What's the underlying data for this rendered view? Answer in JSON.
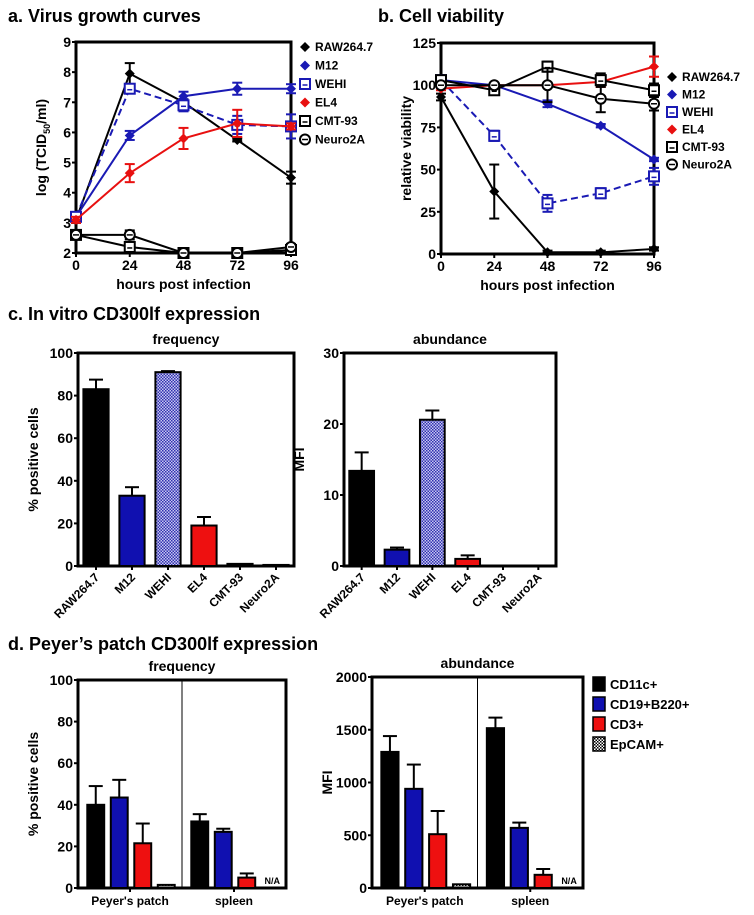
{
  "sections": {
    "c": "c. In vitro CD300lf expression",
    "d": "d. Peyer’s patch CD300lf expression"
  },
  "chart_data": [
    {
      "type": "line",
      "title": "a. Virus growth curves",
      "xlabel": "hours post infection",
      "ylabel": {
        "pre": "log (TCID",
        "sub": "50",
        "post": "/ml)"
      },
      "x": [
        0,
        24,
        48,
        72,
        96
      ],
      "xticks": [
        0,
        24,
        48,
        72,
        96
      ],
      "yticks": [
        2,
        3,
        4,
        5,
        6,
        7,
        8,
        9
      ],
      "xlim": [
        0,
        96
      ],
      "ylim": [
        2,
        9
      ],
      "legend": "right",
      "series": [
        {
          "name": "RAW264.7",
          "color": "#000000",
          "marker": "diamond",
          "dashed": false,
          "values": [
            3.1,
            7.95,
            7.0,
            5.75,
            4.5
          ],
          "err": [
            0.1,
            0.35,
            0.1,
            0.05,
            0.2
          ]
        },
        {
          "name": "M12",
          "color": "#1a1ab4",
          "marker": "diamond",
          "dashed": false,
          "values": [
            3.2,
            5.9,
            7.2,
            7.45,
            7.45
          ],
          "err": [
            0.1,
            0.15,
            0.15,
            0.2,
            0.15
          ]
        },
        {
          "name": "WEHI",
          "color": "#1a1ab4",
          "marker": "open-square",
          "dashed": true,
          "values": [
            3.2,
            7.45,
            6.9,
            6.25,
            6.2
          ],
          "err": [
            0.1,
            0.1,
            0.2,
            0.3,
            0.4
          ]
        },
        {
          "name": "EL4",
          "color": "#e81010",
          "marker": "diamond",
          "dashed": false,
          "values": [
            3.1,
            4.65,
            5.8,
            6.3,
            6.2
          ],
          "err": [
            0.1,
            0.3,
            0.35,
            0.45,
            0.1
          ]
        },
        {
          "name": "CMT-93",
          "color": "#000000",
          "marker": "open-square",
          "dashed": false,
          "values": [
            2.6,
            2.2,
            2.0,
            2.0,
            2.1
          ],
          "err": [
            0.1,
            0.1,
            0,
            0,
            0.15
          ]
        },
        {
          "name": "Neuro2A",
          "color": "#000000",
          "marker": "open-circle",
          "dashed": false,
          "values": [
            2.6,
            2.6,
            2.0,
            2.0,
            2.2
          ],
          "err": [
            0.1,
            0.15,
            0,
            0,
            0.1
          ]
        }
      ]
    },
    {
      "type": "line",
      "title": "b. Cell viability",
      "xlabel": "hours post infection",
      "ylabel": {
        "pre": "relative viability",
        "sub": "",
        "post": ""
      },
      "x": [
        0,
        24,
        48,
        72,
        96
      ],
      "xticks": [
        0,
        24,
        48,
        72,
        96
      ],
      "yticks": [
        0,
        25,
        50,
        75,
        100,
        125
      ],
      "xlim": [
        0,
        96
      ],
      "ylim": [
        0,
        125
      ],
      "legend": "right",
      "series": [
        {
          "name": "RAW264.7",
          "color": "#000000",
          "marker": "diamond",
          "dashed": false,
          "values": [
            93,
            37,
            1,
            1,
            3
          ],
          "err": [
            2,
            16,
            1,
            1,
            1
          ]
        },
        {
          "name": "M12",
          "color": "#1a1ab4",
          "marker": "diamond",
          "dashed": false,
          "values": [
            103,
            100,
            89,
            76,
            56
          ],
          "err": [
            2,
            1,
            2,
            1,
            1
          ]
        },
        {
          "name": "WEHI",
          "color": "#1a1ab4",
          "marker": "open-square",
          "dashed": true,
          "values": [
            103,
            70,
            30,
            36,
            46
          ],
          "err": [
            2,
            3,
            5,
            3,
            5
          ]
        },
        {
          "name": "EL4",
          "color": "#e81010",
          "marker": "diamond",
          "dashed": false,
          "values": [
            98,
            100,
            100,
            102,
            111
          ],
          "err": [
            1,
            1,
            1,
            3,
            6
          ]
        },
        {
          "name": "CMT-93",
          "color": "#000000",
          "marker": "open-square",
          "dashed": false,
          "values": [
            103,
            97,
            111,
            103,
            97
          ],
          "err": [
            1,
            2,
            3,
            4,
            4
          ]
        },
        {
          "name": "Neuro2A",
          "color": "#000000",
          "marker": "open-circle",
          "dashed": false,
          "values": [
            100,
            100,
            100,
            92,
            89
          ],
          "err": [
            1,
            1,
            10,
            8,
            4
          ]
        }
      ]
    },
    {
      "type": "bar",
      "subtitle": "frequency",
      "ylabel": "% positive cells",
      "categories": [
        "RAW264.7",
        "M12",
        "WEHI",
        "EL4",
        "CMT-93",
        "Neuro2A"
      ],
      "values": [
        83,
        33,
        91,
        19,
        1,
        0.5
      ],
      "err": [
        4.5,
        4,
        0.5,
        4,
        0,
        0
      ],
      "colors": [
        "#000000",
        "#1010b0",
        "checker-blue",
        "#ee1010",
        "#000000",
        "#000000"
      ],
      "yticks": [
        0,
        20,
        40,
        60,
        80,
        100
      ],
      "ylim": [
        0,
        100
      ]
    },
    {
      "type": "bar",
      "subtitle": "abundance",
      "ylabel": "MFI",
      "categories": [
        "RAW264.7",
        "M12",
        "WEHI",
        "EL4",
        "CMT-93",
        "Neuro2A"
      ],
      "values": [
        13.4,
        2.3,
        20.6,
        1.0,
        0,
        0
      ],
      "err": [
        2.6,
        0.3,
        1.3,
        0.5,
        0,
        0
      ],
      "colors": [
        "#000000",
        "#1010b0",
        "checker-blue",
        "#ee1010",
        "#000000",
        "#000000"
      ],
      "yticks": [
        0,
        10,
        20,
        30
      ],
      "ylim": [
        0,
        30
      ]
    },
    {
      "type": "bar",
      "subtitle": "frequency",
      "ylabel": "% positive cells",
      "groups": [
        "Peyer's patch",
        "spleen"
      ],
      "series": [
        {
          "name": "CD11c+",
          "color": "#000000",
          "values": [
            40,
            32
          ],
          "err": [
            9,
            3.5
          ]
        },
        {
          "name": "CD19+B220+",
          "color": "#1010b0",
          "values": [
            43.5,
            27
          ],
          "err": [
            8.5,
            1.5
          ]
        },
        {
          "name": "CD3+",
          "color": "#ee1010",
          "values": [
            21.5,
            5
          ],
          "err": [
            9.5,
            2
          ]
        },
        {
          "name": "EpCAM+",
          "color": "checker-black",
          "values": [
            1.5,
            null
          ],
          "err": [
            0,
            null
          ]
        }
      ],
      "na_label": "N/A",
      "yticks": [
        0,
        20,
        40,
        60,
        80,
        100
      ],
      "ylim": [
        0,
        100
      ]
    },
    {
      "type": "bar",
      "subtitle": "abundance",
      "ylabel": "MFI",
      "groups": [
        "Peyer's patch",
        "spleen"
      ],
      "series": [
        {
          "name": "CD11c+",
          "color": "#000000",
          "values": [
            1290,
            1515
          ],
          "err": [
            150,
            100
          ]
        },
        {
          "name": "CD19+B220+",
          "color": "#1010b0",
          "values": [
            940,
            570
          ],
          "err": [
            230,
            50
          ]
        },
        {
          "name": "CD3+",
          "color": "#ee1010",
          "values": [
            510,
            125
          ],
          "err": [
            220,
            55
          ]
        },
        {
          "name": "EpCAM+",
          "color": "checker-black",
          "values": [
            35,
            null
          ],
          "err": [
            0,
            null
          ]
        }
      ],
      "na_label": "N/A",
      "legend": "right",
      "yticks": [
        0,
        500,
        1000,
        1500,
        2000
      ],
      "ylim": [
        0,
        2000
      ]
    }
  ]
}
